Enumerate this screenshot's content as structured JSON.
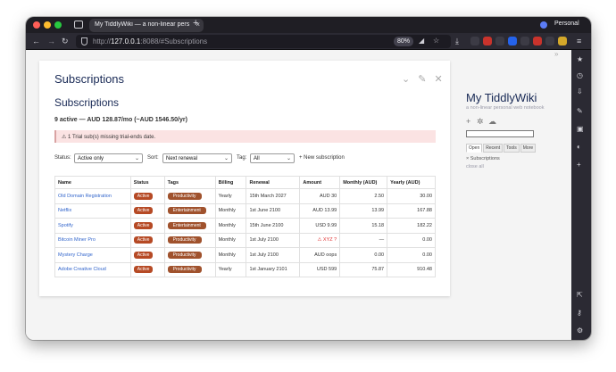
{
  "browser": {
    "tab_title": "My TiddlyWiki — a non-linear personal web notebook",
    "tab_close": "×",
    "new_tab": "+",
    "profile_label": "Personal",
    "url_prefix": "http://",
    "url_host": "127.0.0.1",
    "url_rest": ":8088/#Subscriptions",
    "zoom": "80%",
    "nav_icons": [
      "back-icon",
      "forward-icon",
      "reload-icon"
    ],
    "extension_colors": [
      "#3c3b45",
      "#c9332c",
      "#3c3b45",
      "#2563eb",
      "#3c3b45",
      "#c9332c",
      "#3c3b45",
      "#d4a82a"
    ]
  },
  "tiddler": {
    "title": "Subscriptions",
    "heading": "Subscriptions",
    "controls": "⌄ ✎ ✕",
    "summary": "9 active — AUD 128.87/mo (~AUD 1546.50/yr)",
    "alert": "⚠ 1 Trial sub(s) missing trial-ends date.",
    "filters": {
      "status_label": "Status:",
      "status_value": "Active only",
      "sort_label": "Sort:",
      "sort_value": "Next renewal",
      "tag_label": "Tag:",
      "tag_value": "All",
      "new_sub": "+ New subscription"
    },
    "table": {
      "headers": [
        "Name",
        "Status",
        "Tags",
        "Billing",
        "Renewal",
        "Amount",
        "Monthly (AUD)",
        "Yearly (AUD)"
      ],
      "rows": [
        {
          "name": "Old Domain Registration",
          "status": "Active",
          "tag": "Productivity",
          "billing": "Yearly",
          "renewal": "15th March 2027",
          "amount": "AUD 30",
          "monthly": "2.50",
          "yearly": "30.00"
        },
        {
          "name": "Netflix",
          "status": "Active",
          "tag": "Entertainment",
          "billing": "Monthly",
          "renewal": "1st June 2100",
          "amount": "AUD 13.99",
          "monthly": "13.99",
          "yearly": "167.88"
        },
        {
          "name": "Spotify",
          "status": "Active",
          "tag": "Entertainment",
          "billing": "Monthly",
          "renewal": "15th June 2100",
          "amount": "USD 9.99",
          "monthly": "15.18",
          "yearly": "182.22"
        },
        {
          "name": "Bitcoin Miner Pro",
          "status": "Active",
          "tag": "Productivity",
          "billing": "Monthly",
          "renewal": "1st July 2100",
          "amount": "⚠ XYZ ?",
          "monthly": "—",
          "yearly": "0.00"
        },
        {
          "name": "Mystery Charge",
          "status": "Active",
          "tag": "Productivity",
          "billing": "Monthly",
          "renewal": "1st July 2100",
          "amount": "AUD oops",
          "monthly": "0.00",
          "yearly": "0.00"
        },
        {
          "name": "Adobe Creative Cloud",
          "status": "Active",
          "tag": "Productivity",
          "billing": "Yearly",
          "renewal": "1st January 2101",
          "amount": "USD 599",
          "monthly": "75.87",
          "yearly": "910.48"
        }
      ]
    }
  },
  "sidebar": {
    "title": "My TiddlyWiki",
    "subtitle": "a non-linear personal web notebook",
    "tabs": [
      "Open",
      "Recent",
      "Tools",
      "More"
    ],
    "open_item": "Subscriptions",
    "close_all": "close all"
  },
  "rail": {
    "icons": [
      "star-icon",
      "history-icon",
      "download-icon",
      "pen-icon",
      "translate-icon",
      "bookmark-icon",
      "add-icon",
      "export-icon",
      "key-icon",
      "gear-icon"
    ]
  }
}
